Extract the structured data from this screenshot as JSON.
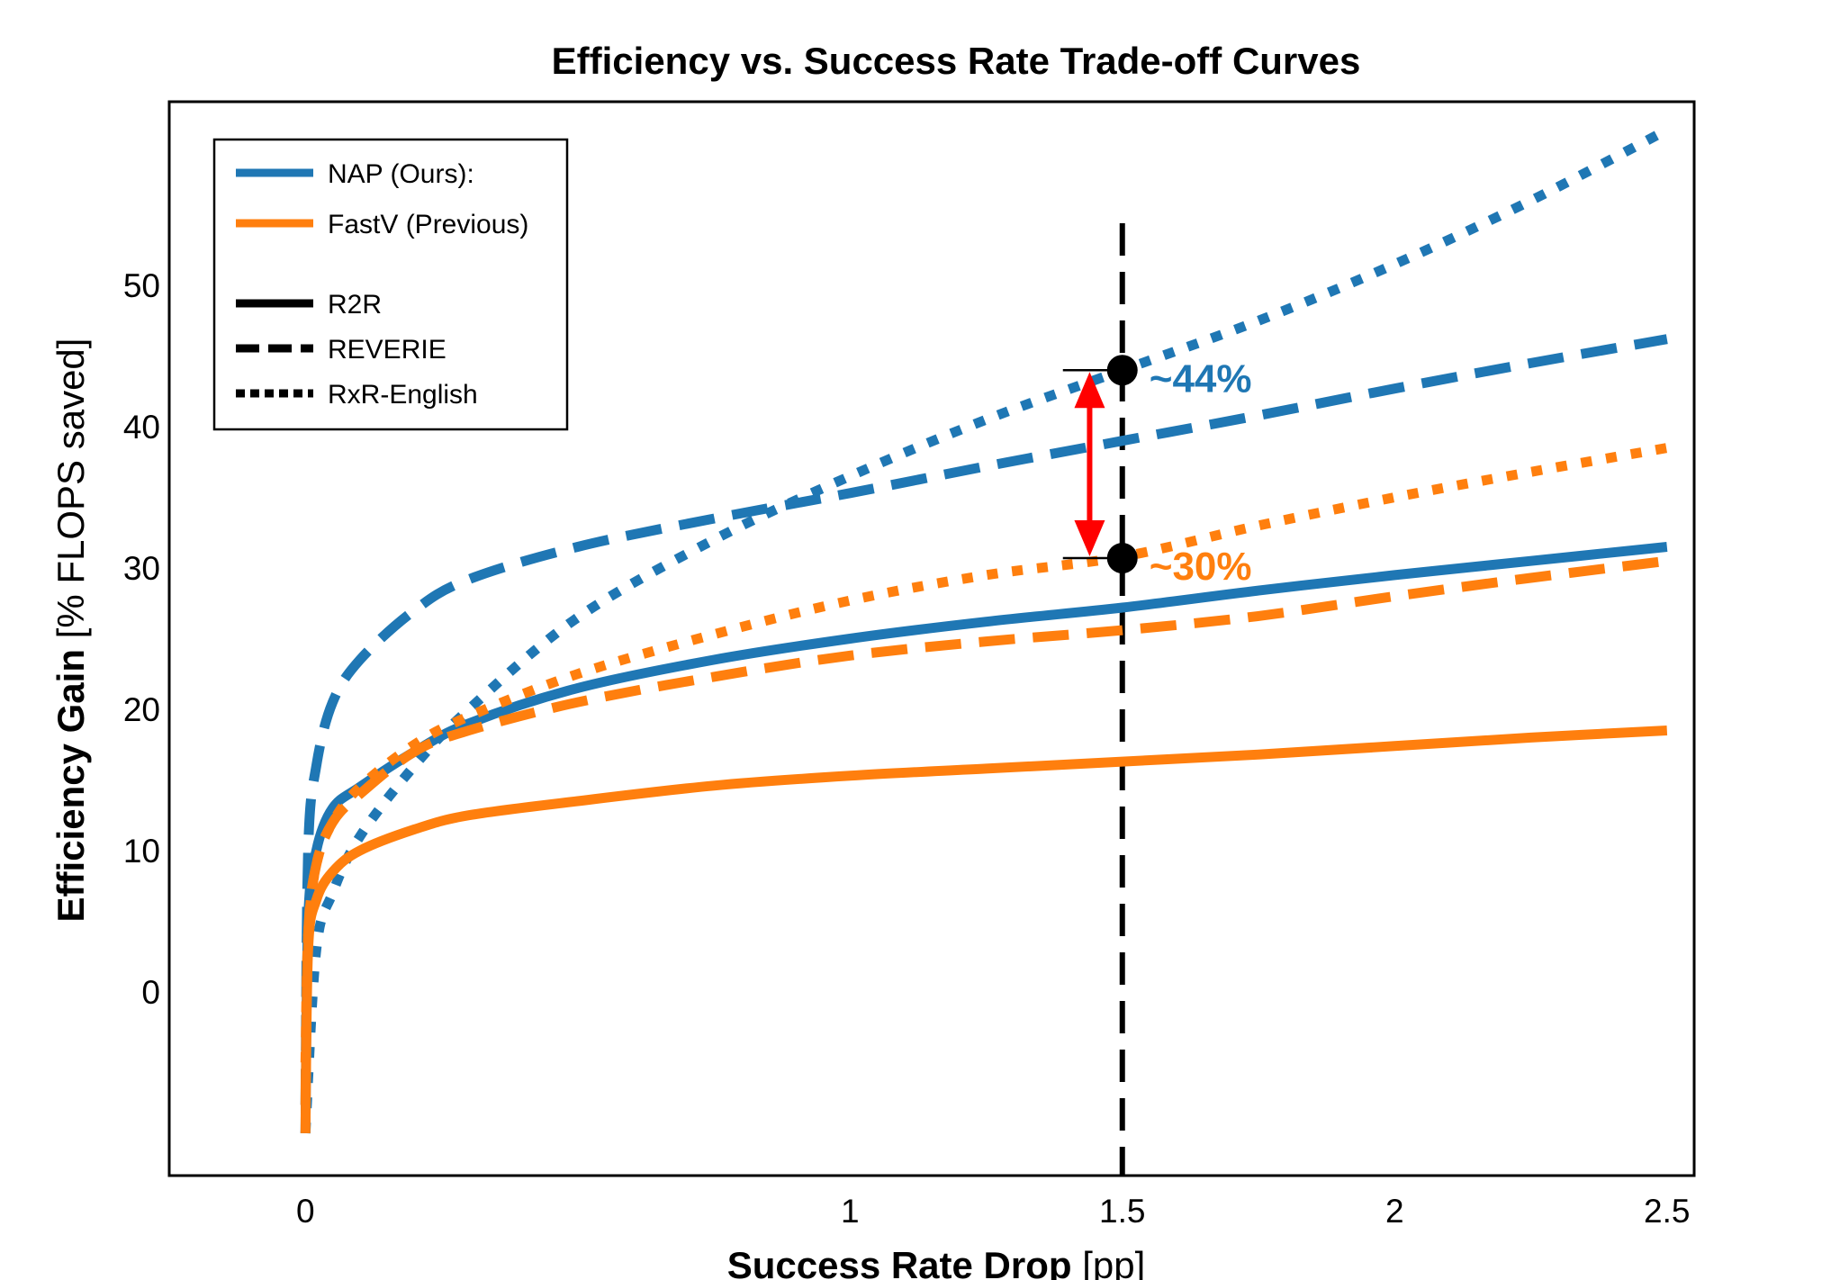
{
  "chart_data": {
    "type": "line",
    "title": "Efficiency vs. Success Rate Trade-off Curves",
    "xlabel": {
      "bold": "Success Rate Drop",
      "normal": " [pp]"
    },
    "ylabel": {
      "bold": "Efficiency Gain",
      "normal": " [% FLOPS saved]"
    },
    "xlim": [
      -0.25,
      2.55
    ],
    "ylim": [
      -13,
      63
    ],
    "x_ticks": [
      0,
      1,
      1.5,
      2,
      2.5
    ],
    "x_tick_labels": [
      "0",
      "1",
      "1.5",
      "2",
      "2.5"
    ],
    "y_ticks": [
      0,
      10,
      20,
      30,
      40,
      50
    ],
    "y_tick_labels": [
      "0",
      "10",
      "20",
      "30",
      "40",
      "50"
    ],
    "grid": false,
    "legend_position": "top-left",
    "legend": {
      "methods": [
        {
          "label": "NAP (Ours):",
          "color": "#1f77b4"
        },
        {
          "label": "FastV (Previous)",
          "color": "#ff7f0e"
        }
      ],
      "datasets": [
        {
          "label": "R2R",
          "style": "solid"
        },
        {
          "label": "REVERIE",
          "style": "dashed"
        },
        {
          "label": "RxR-English",
          "style": "dotted"
        }
      ]
    },
    "series": [
      {
        "method": "NAP",
        "dataset": "R2R",
        "color": "#1f77b4",
        "style": "solid",
        "x": [
          0,
          0.005,
          0.02,
          0.05,
          0.1,
          0.2,
          0.3,
          0.5,
          0.75,
          1.0,
          1.25,
          1.5,
          1.75,
          2.0,
          2.25,
          2.5
        ],
        "y": [
          -10,
          5,
          10,
          13,
          14.5,
          17,
          19,
          21.5,
          23.5,
          25,
          26.2,
          27.2,
          28.4,
          29.5,
          30.5,
          31.5
        ]
      },
      {
        "method": "NAP",
        "dataset": "REVERIE",
        "color": "#1f77b4",
        "style": "dashed",
        "x": [
          0,
          0.005,
          0.02,
          0.05,
          0.1,
          0.2,
          0.3,
          0.5,
          0.75,
          1.0,
          1.25,
          1.5,
          1.75,
          2.0,
          2.25,
          2.5
        ],
        "y": [
          -8,
          10,
          16,
          20.5,
          23.5,
          27,
          29.2,
          31.5,
          33.5,
          35.3,
          37.2,
          39,
          40.8,
          42.7,
          44.5,
          46.2
        ]
      },
      {
        "method": "NAP",
        "dataset": "RxR-English",
        "color": "#1f77b4",
        "style": "dotted",
        "x": [
          0,
          0.02,
          0.05,
          0.1,
          0.2,
          0.3,
          0.5,
          0.75,
          1.0,
          1.25,
          1.5,
          1.75,
          2.0,
          2.25,
          2.5
        ],
        "y": [
          -10,
          3,
          7,
          11,
          16,
          20,
          26.5,
          32,
          36.5,
          40.5,
          44,
          47.5,
          51.5,
          56,
          61
        ]
      },
      {
        "method": "FastV",
        "dataset": "R2R",
        "color": "#ff7f0e",
        "style": "solid",
        "x": [
          0,
          0.005,
          0.02,
          0.05,
          0.1,
          0.2,
          0.3,
          0.5,
          0.75,
          1.0,
          1.25,
          1.5,
          1.75,
          2.0,
          2.25,
          2.5
        ],
        "y": [
          -10,
          3,
          6.5,
          8.5,
          10,
          11.5,
          12.5,
          13.5,
          14.6,
          15.3,
          15.8,
          16.3,
          16.8,
          17.4,
          18,
          18.5
        ]
      },
      {
        "method": "FastV",
        "dataset": "REVERIE",
        "color": "#ff7f0e",
        "style": "dashed",
        "x": [
          0,
          0.005,
          0.02,
          0.05,
          0.1,
          0.2,
          0.3,
          0.5,
          0.75,
          1.0,
          1.25,
          1.5,
          1.75,
          2.0,
          2.25,
          2.5
        ],
        "y": [
          -8,
          4,
          9,
          12,
          14,
          17,
          18.5,
          20.5,
          22.3,
          23.8,
          24.8,
          25.6,
          26.6,
          28,
          29.3,
          30.5
        ]
      },
      {
        "method": "FastV",
        "dataset": "RxR-English",
        "color": "#ff7f0e",
        "style": "dotted",
        "x": [
          0,
          0.005,
          0.02,
          0.05,
          0.1,
          0.2,
          0.3,
          0.5,
          0.75,
          1.0,
          1.25,
          1.5,
          1.75,
          2.0,
          2.25,
          2.5
        ],
        "y": [
          -5,
          4,
          9,
          12,
          14.5,
          17.5,
          19.5,
          22.5,
          25.3,
          27.7,
          29.5,
          30.8,
          33,
          35,
          36.8,
          38.5
        ]
      }
    ],
    "vline": {
      "x": 1.5,
      "color": "#000000",
      "style": "dashed"
    },
    "annotations": [
      {
        "x": 1.5,
        "y": 44,
        "text": "~44%",
        "color": "#1f77b4"
      },
      {
        "x": 1.5,
        "y": 30.7,
        "text": "~30%",
        "color": "#ff7f0e"
      }
    ],
    "arrow": {
      "x": 1.44,
      "y_top": 44,
      "y_bottom": 30.7,
      "color": "#ff0000"
    }
  }
}
